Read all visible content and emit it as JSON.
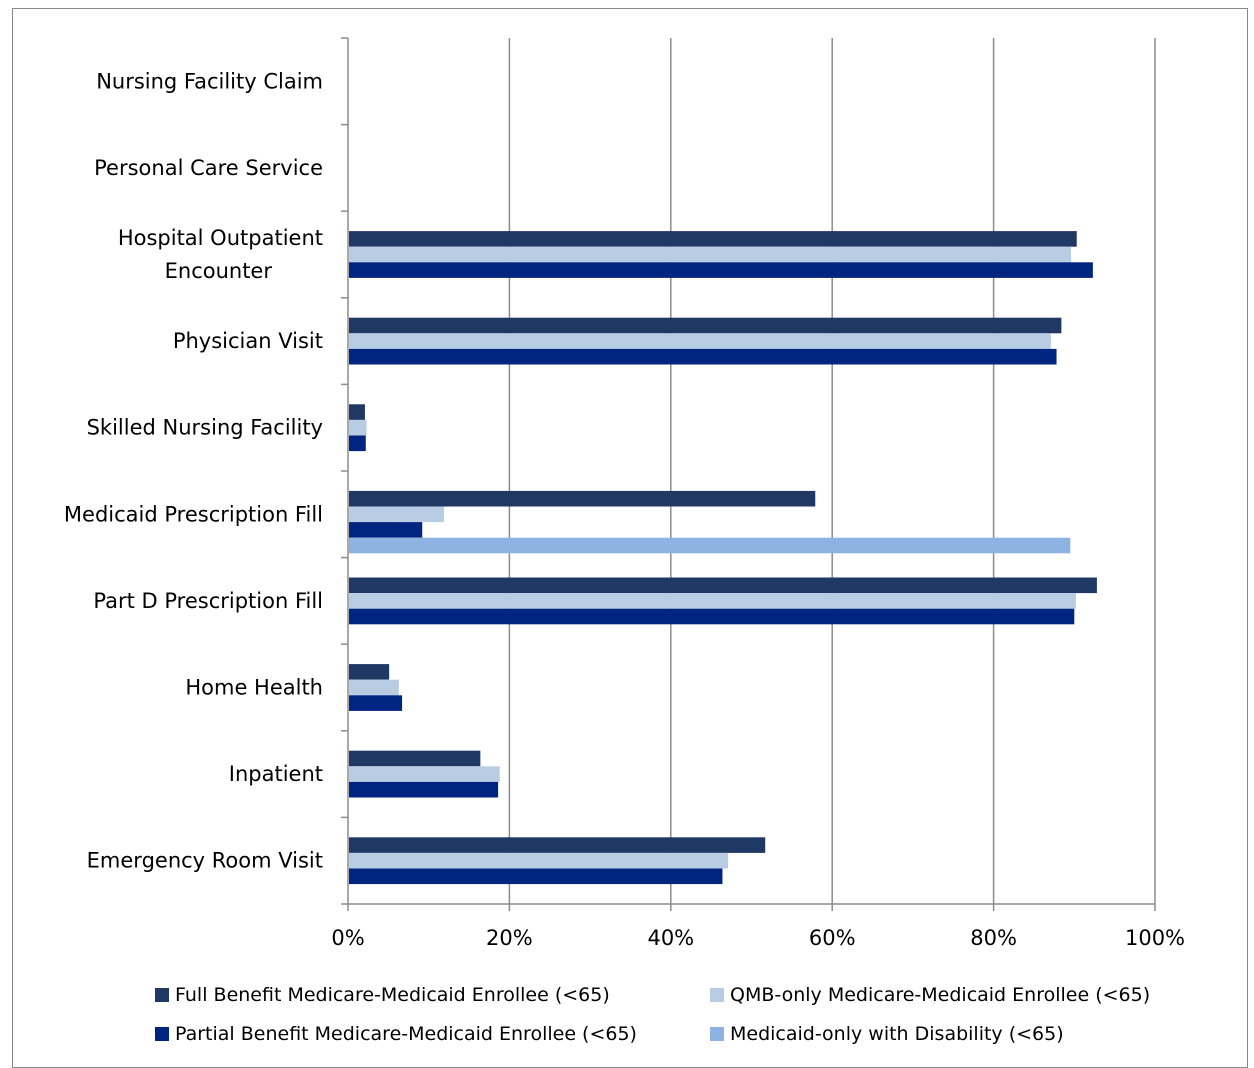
{
  "chart_data": {
    "type": "bar",
    "orientation": "horizontal",
    "title": "",
    "xlabel": "",
    "ylabel": "",
    "xlim": [
      0,
      100
    ],
    "x_ticks": [
      "0%",
      "20%",
      "40%",
      "60%",
      "80%",
      "100%"
    ],
    "grid": "vertical",
    "legend_position": "bottom",
    "categories": [
      "Nursing Facility Claim",
      "Personal Care Service",
      "Hospital Outpatient Encounter",
      "Physician Visit",
      "Skilled Nursing Facility",
      "Medicaid Prescription Fill",
      "Part D Prescription Fill",
      "Home Health",
      "Inpatient",
      "Emergency Room Visit"
    ],
    "series": [
      {
        "name": "Full Benefit Medicare-Medicaid Enrollee (<65)",
        "color": "#1F3864",
        "values": [
          null,
          null,
          90.3,
          88.4,
          2.1,
          57.9,
          92.8,
          5.1,
          16.4,
          51.7
        ]
      },
      {
        "name": "QMB-only Medicare-Medicaid Enrollee (<65)",
        "color": "#B8CCE4",
        "values": [
          null,
          null,
          89.6,
          87.1,
          2.3,
          11.9,
          90.2,
          6.3,
          18.8,
          47.1
        ]
      },
      {
        "name": "Partial Benefit Medicare-Medicaid Enrollee (<65)",
        "color": "#002580",
        "values": [
          null,
          null,
          92.3,
          87.8,
          2.2,
          9.2,
          90.0,
          6.7,
          18.6,
          46.4
        ]
      },
      {
        "name": "Medicaid-only with Disability (<65)",
        "color": "#8DB3E2",
        "values": [
          null,
          null,
          null,
          null,
          null,
          89.5,
          null,
          null,
          null,
          null
        ]
      }
    ]
  }
}
